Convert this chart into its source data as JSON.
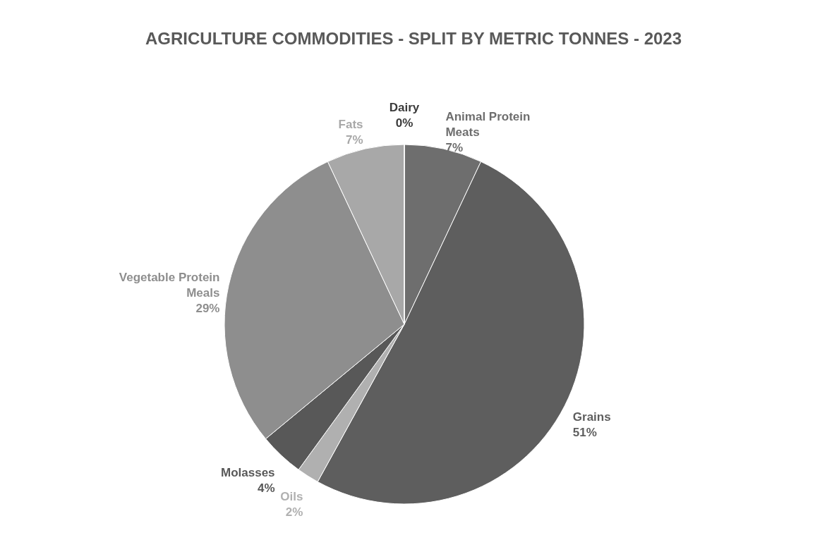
{
  "chart_data": {
    "type": "pie",
    "title": "AGRICULTURE COMMODITIES - SPLIT BY METRIC TONNES - 2023",
    "categories": [
      "Animal Protein Meats",
      "Grains",
      "Oils",
      "Molasses",
      "Vegetable Protein Meals",
      "Fats",
      "Dairy"
    ],
    "values": [
      7,
      51,
      2,
      4,
      29,
      7,
      0
    ],
    "value_labels": [
      "7%",
      "51%",
      "2%",
      "4%",
      "29%",
      "7%",
      "0%"
    ],
    "colors": [
      "#6e6e6e",
      "#5e5e5e",
      "#b0b0b0",
      "#585858",
      "#8e8e8e",
      "#a8a8a8",
      "#3a3a3a"
    ],
    "legend": false
  }
}
